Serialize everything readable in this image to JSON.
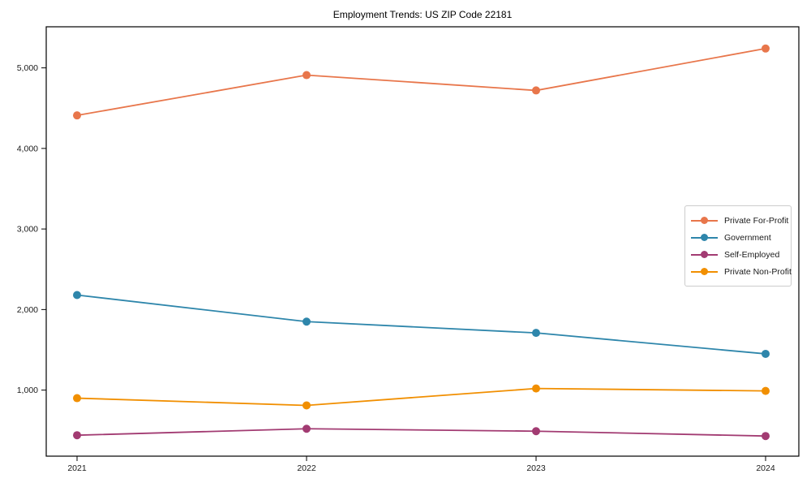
{
  "chart_data": {
    "type": "line",
    "title": "Employment Trends: US ZIP Code 22181",
    "xlabel": "",
    "ylabel": "",
    "x": [
      "2021",
      "2022",
      "2023",
      "2024"
    ],
    "series": [
      {
        "name": "Private For-Profit",
        "color": "#E8764B",
        "values": [
          4410,
          4910,
          4720,
          5240
        ]
      },
      {
        "name": "Government",
        "color": "#2E86AB",
        "values": [
          2180,
          1850,
          1710,
          1450
        ]
      },
      {
        "name": "Self-Employed",
        "color": "#A23B72",
        "values": [
          440,
          520,
          490,
          430
        ]
      },
      {
        "name": "Private Non-Profit",
        "color": "#F18F01",
        "values": [
          900,
          810,
          1020,
          990
        ]
      }
    ],
    "ylim": [
      180,
      5510
    ],
    "yticks": [
      1000,
      2000,
      3000,
      4000,
      5000
    ],
    "ytick_labels": [
      "1,000",
      "2,000",
      "3,000",
      "4,000",
      "5,000"
    ],
    "grid": false,
    "legend_position": "center right",
    "marker": "circle",
    "frame_color": "#000000"
  }
}
